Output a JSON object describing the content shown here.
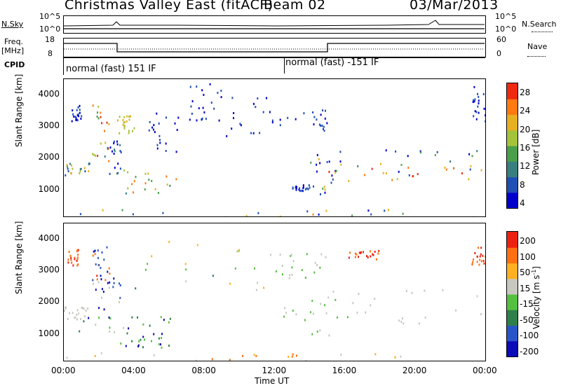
{
  "header": {
    "title": "Christmas Valley East (fitACF)",
    "beam": "Beam 02",
    "date": "03/Mar/2013"
  },
  "strip_panels": {
    "nsky_label": "N.Sky",
    "nsky_ticks": [
      "10^5",
      "10^0"
    ],
    "nsearch_label": "N.Search",
    "nsearch_ticks": [
      "10^5",
      "10^0"
    ],
    "freq_label_line1": "Freq.",
    "freq_label_line2": "[MHz]",
    "freq_ticks": [
      "18",
      "8"
    ],
    "nave_label": "Nave",
    "nave_ticks": [
      "60",
      "0"
    ],
    "cpid_label": "CPID",
    "cpid_mode_1": "normal (fast) 151 IF",
    "cpid_mode_2": "normal (fast) -151 IF"
  },
  "chart_data": [
    {
      "type": "heatmap",
      "title": "Power",
      "ylabel": "Slant Range [km]",
      "xlabel": "Time UT",
      "x_ticks": [
        "00:00",
        "04:00",
        "08:00",
        "12:00",
        "16:00",
        "20:00",
        "00:00"
      ],
      "y_ticks": [
        "1000",
        "2000",
        "3000",
        "4000"
      ],
      "ylim": [
        180,
        4500
      ],
      "colorbar_label": "Power [dB]",
      "colorbar_ticks": [
        "28",
        "24",
        "20",
        "16",
        "12",
        "8",
        "4"
      ],
      "colorbar_range": [
        0,
        30
      ],
      "colorbar_colors": [
        "#0000cc",
        "#1f4fb5",
        "#3a7f7f",
        "#4aa04a",
        "#a5c33a",
        "#e6b020",
        "#ff7a10",
        "#ee2a10"
      ]
    },
    {
      "type": "heatmap",
      "title": "Velocity",
      "ylabel": "Slant Range [km]",
      "xlabel": "Time UT",
      "x_ticks": [
        "00:00",
        "04:00",
        "08:00",
        "12:00",
        "16:00",
        "20:00",
        "00:00"
      ],
      "y_ticks": [
        "1000",
        "2000",
        "3000",
        "4000"
      ],
      "ylim": [
        180,
        4500
      ],
      "colorbar_label": "Velocity [m s-1]",
      "colorbar_ticks": [
        "200",
        "100",
        "50",
        "15",
        "-15",
        "-50",
        "-100",
        "-200"
      ],
      "colorbar_range": [
        -250,
        250
      ],
      "colorbar_colors": [
        "#0b0bb8",
        "#2a55c9",
        "#2f7f4a",
        "#55c040",
        "#c8c8c0",
        "#ffb020",
        "#ff7010",
        "#ee2010"
      ]
    }
  ],
  "axes": {
    "time_label": "Time UT",
    "power_cbar_title": "Power [dB]",
    "velocity_cbar_title": "Velocity [m s",
    "velocity_cbar_sup": "-1",
    "velocity_cbar_end": "]"
  }
}
